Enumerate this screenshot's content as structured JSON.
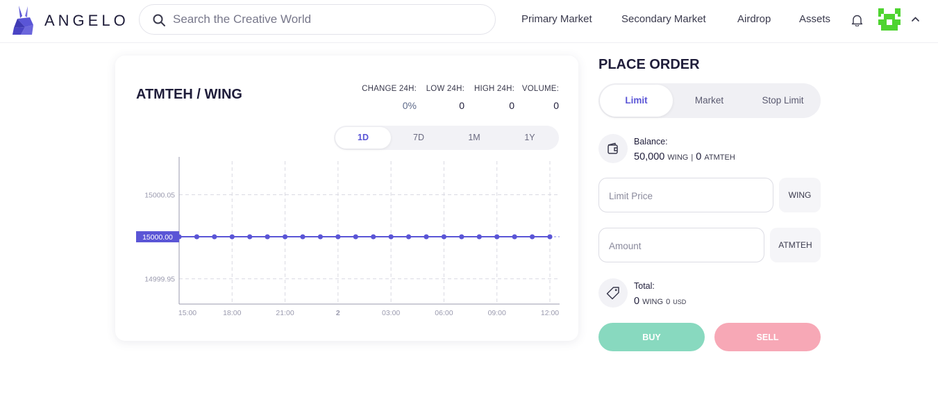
{
  "header": {
    "logo_text": "ANGELO",
    "search": {
      "placeholder": "Search the Creative World",
      "value": ""
    },
    "nav": [
      "Primary Market",
      "Secondary Market",
      "Airdrop",
      "Assets"
    ]
  },
  "market": {
    "pair": "ATMTEH / WING",
    "stats": [
      {
        "label": "CHANGE 24H:",
        "value": "0%"
      },
      {
        "label": "LOW 24H:",
        "value": "0"
      },
      {
        "label": "HIGH 24H:",
        "value": "0"
      },
      {
        "label": "VOLUME:",
        "value": "0"
      }
    ],
    "periods": [
      "1D",
      "7D",
      "1M",
      "1Y"
    ],
    "active_period": "1D"
  },
  "chart_data": {
    "type": "line",
    "x_ticks": [
      "15:00",
      "18:00",
      "21:00",
      "2",
      "03:00",
      "06:00",
      "09:00",
      "12:00"
    ],
    "y_ticks": [
      "15000.05",
      "14999.95"
    ],
    "ylim": [
      14999.92,
      15000.09
    ],
    "current_label": "15000.00",
    "series": [
      {
        "values": [
          15000,
          15000,
          15000,
          15000,
          15000,
          15000,
          15000,
          15000,
          15000,
          15000,
          15000,
          15000,
          15000,
          15000,
          15000,
          15000,
          15000,
          15000,
          15000,
          15000,
          15000,
          15000
        ]
      }
    ],
    "colors": {
      "line": "#5a55d6",
      "grid": "#d9d9e2",
      "tick": "#9a9aae"
    }
  },
  "order": {
    "title": "PLACE ORDER",
    "tabs": [
      "Limit",
      "Market",
      "Stop Limit"
    ],
    "active_tab": "Limit",
    "balance": {
      "label": "Balance:",
      "amount1": "50,000",
      "unit1": "WING",
      "separator": "|",
      "amount2": "0",
      "unit2": "ATMTEH"
    },
    "limit_price": {
      "placeholder": "Limit Price",
      "unit": "WING"
    },
    "amount": {
      "placeholder": "Amount",
      "unit": "ATMTEH"
    },
    "total": {
      "label": "Total:",
      "amount1": "0",
      "unit1": "WING",
      "amount2": "0",
      "unit2": "USD"
    },
    "buy_label": "BUY",
    "sell_label": "SELL"
  },
  "colors": {
    "accent": "#5a55d6",
    "buy": "#88d9bf",
    "sell": "#f7a8b6",
    "avatar": "#4ed430"
  },
  "icons": [
    "rabbit-logo-icon",
    "search-icon",
    "bell-icon",
    "avatar-icon",
    "chevron-up-icon",
    "wallet-icon",
    "tag-icon"
  ]
}
